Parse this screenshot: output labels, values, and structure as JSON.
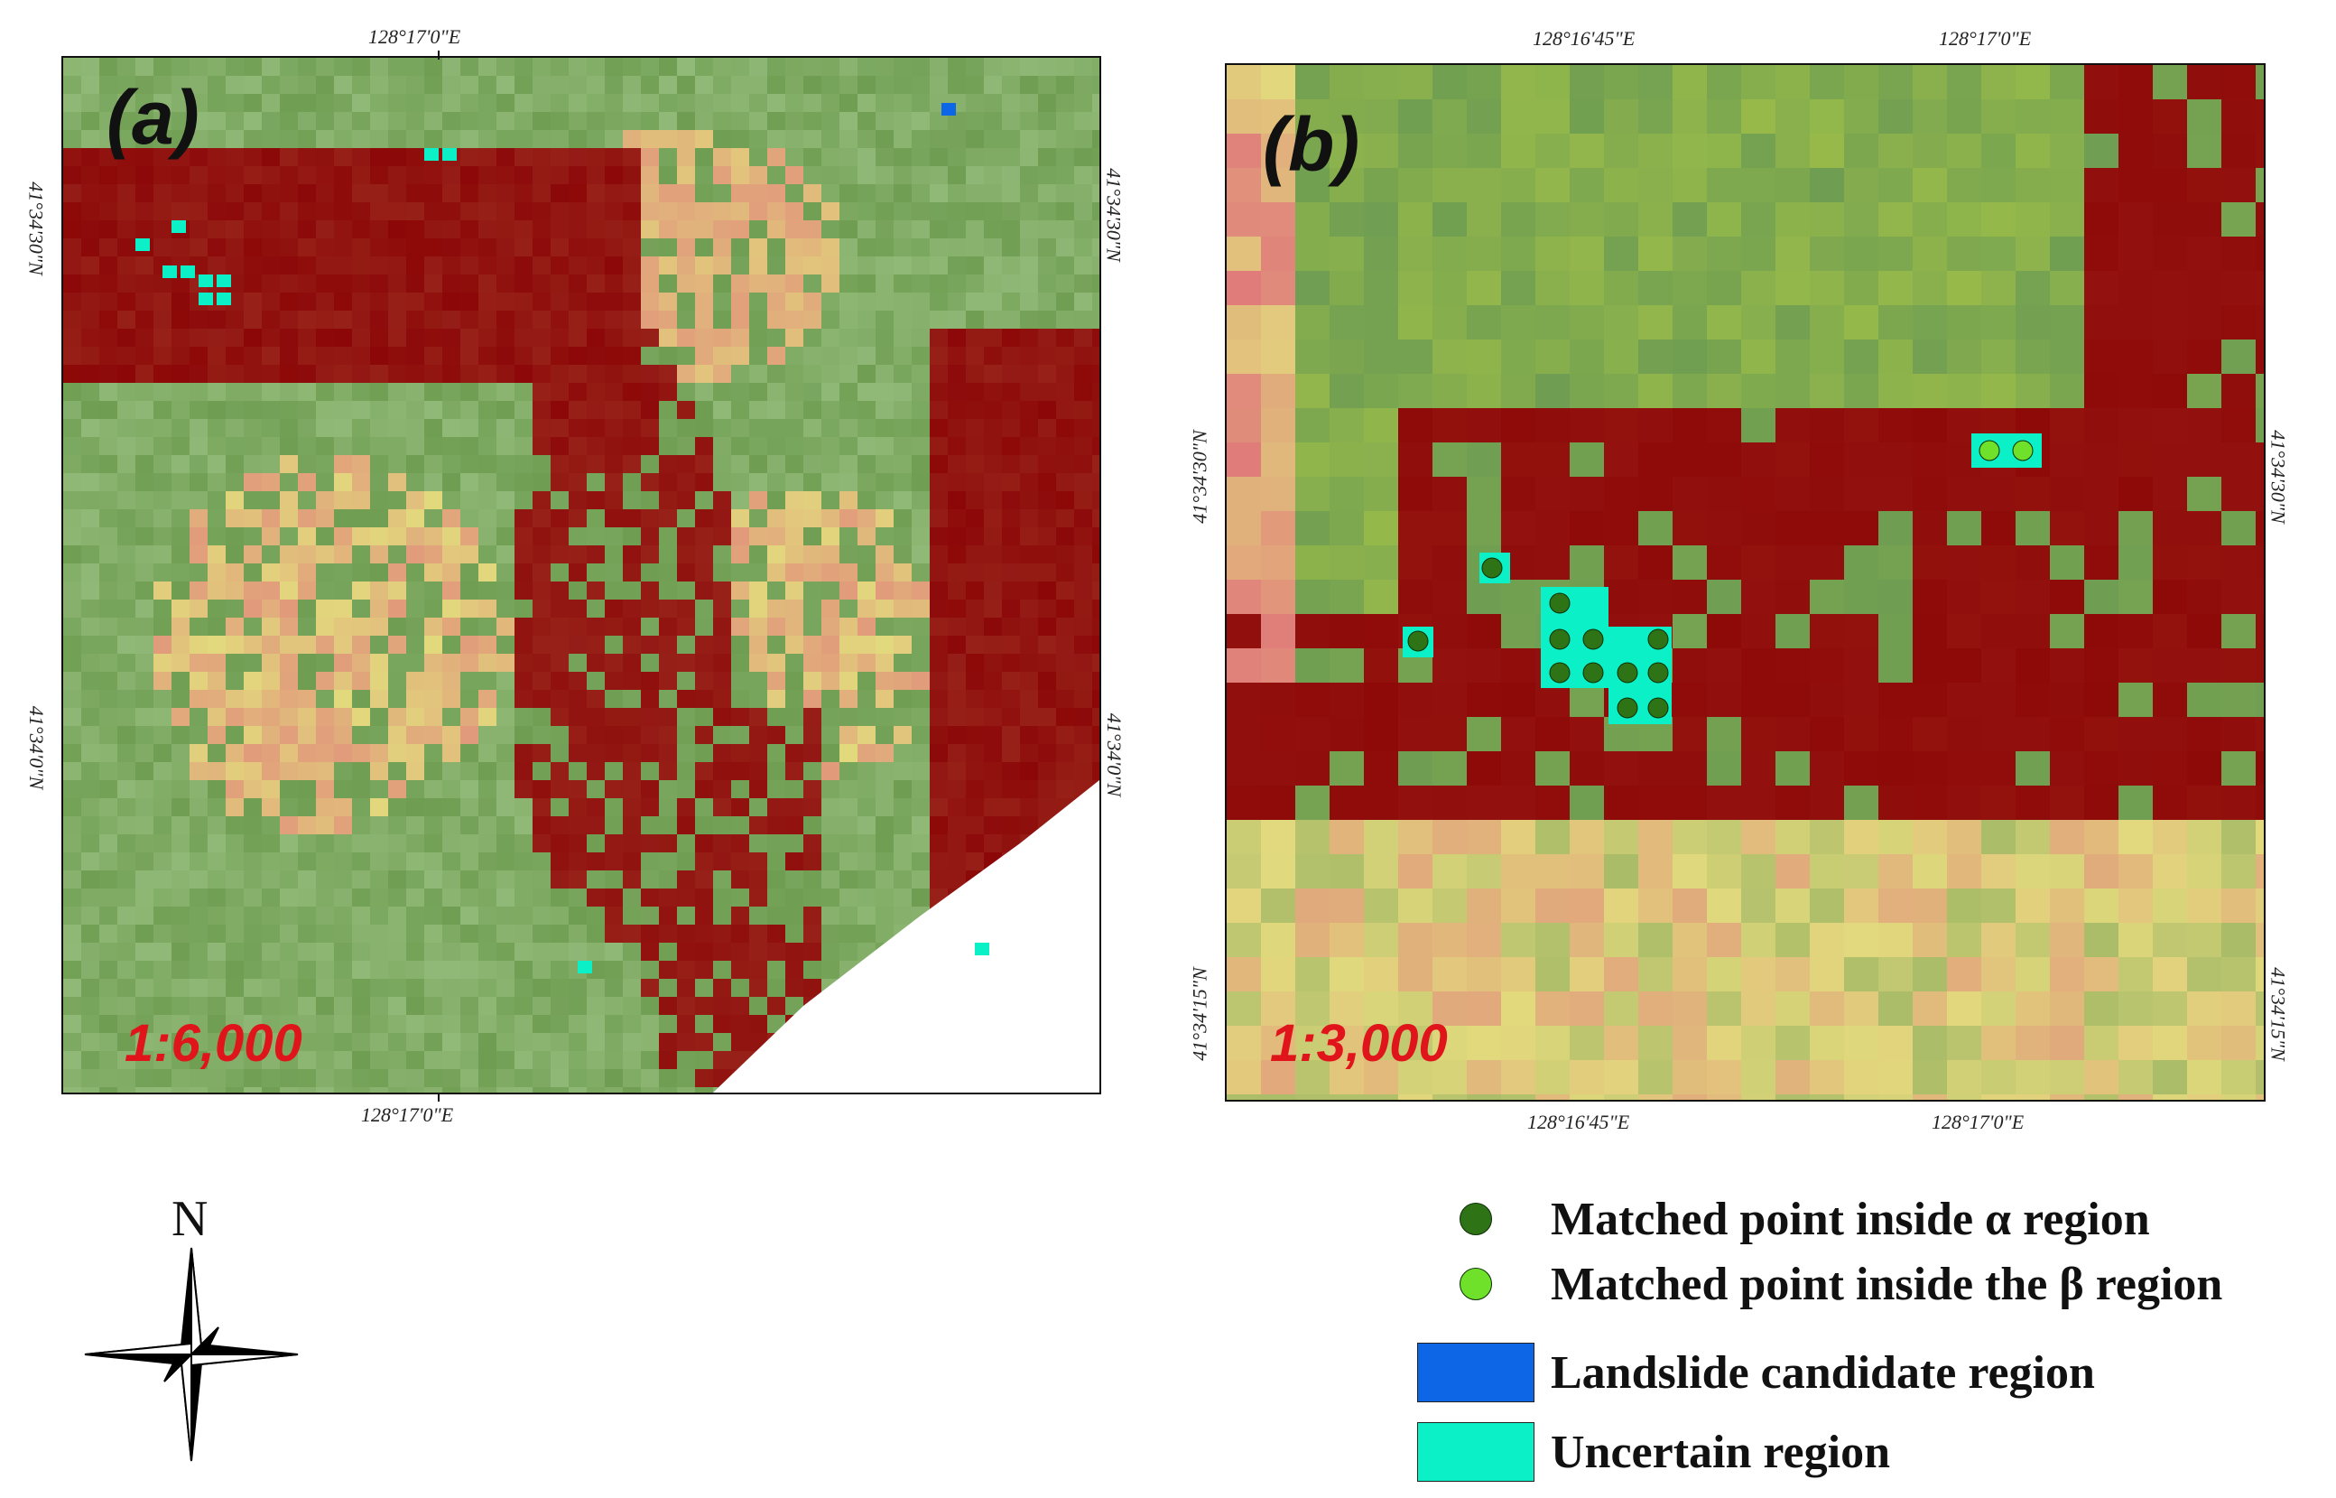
{
  "panel_a": {
    "label": "(a)",
    "scale": "1:6,000",
    "top_lon": "128°17'0\"E",
    "bottom_lon": "128°17'0\"E",
    "left_lats": [
      "41°34'30\"N",
      "41°34'0\"N"
    ],
    "right_lats": [
      "41°34'30\"N",
      "41°34'0\"N"
    ]
  },
  "panel_b": {
    "label": "(b)",
    "scale": "1:3,000",
    "top_lons": [
      "128°16'45\"E",
      "128°17'0\"E"
    ],
    "bottom_lons": [
      "128°16'45\"E",
      "128°17'0\"E"
    ],
    "left_lats": [
      "41°34'30\"N",
      "41°34'15\"N"
    ],
    "right_lats": [
      "41°34'30\"N",
      "41°34'15\"N"
    ]
  },
  "north_arrow": {
    "label": "N",
    "icon": "compass-rose-icon"
  },
  "legend": {
    "items": [
      {
        "label": "Matched point inside α region",
        "symbol": "dot",
        "color": "#2e7416"
      },
      {
        "label": "Matched point inside the β region",
        "symbol": "dot",
        "color": "#6fe12a"
      },
      {
        "label": "Landslide candidate region",
        "symbol": "square",
        "color": "#0d66e6"
      },
      {
        "label": "Uncertain region",
        "symbol": "square",
        "color": "#0cf0c8"
      }
    ]
  },
  "colors": {
    "dense_vegetation": "#8c0808",
    "green_area": "#6f9e52",
    "bare_pink": "#e0787a",
    "yellow": "#e2d97d",
    "uncertain": "#0cf0c8",
    "candidate": "#0d66e6",
    "alpha_point": "#2e7416",
    "beta_point": "#6fe12a"
  }
}
